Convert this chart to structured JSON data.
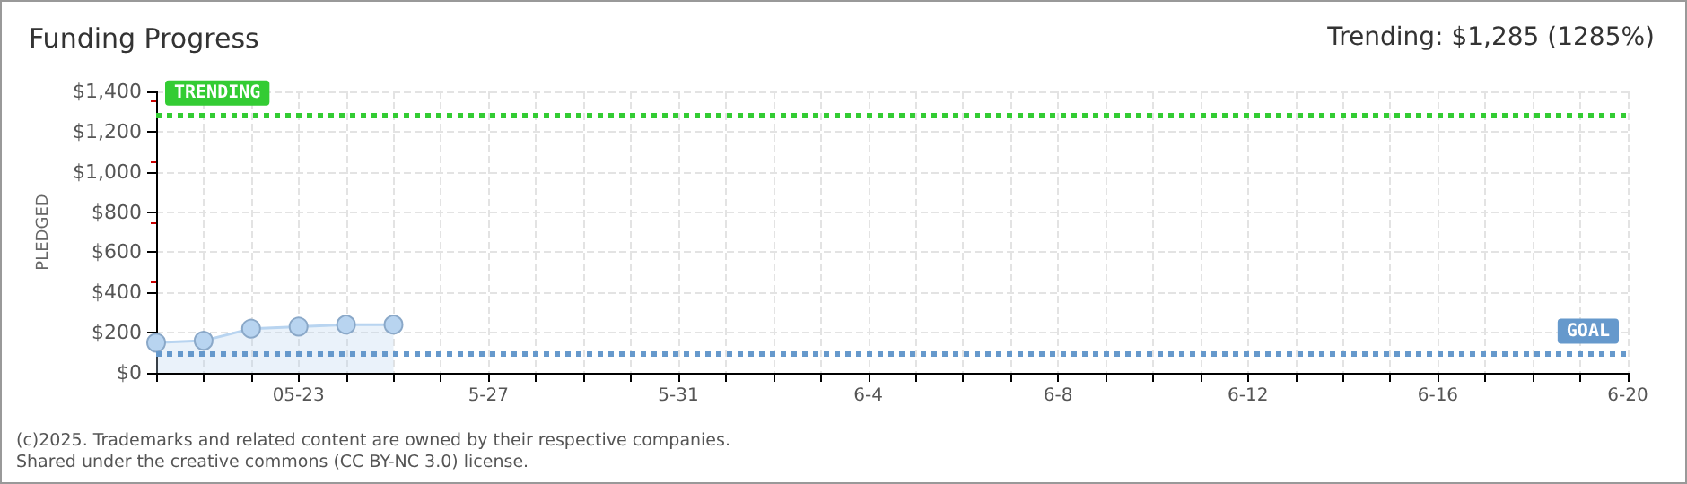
{
  "chart_data": {
    "type": "area",
    "title": "Funding Progress",
    "subtitle": "Trending: $1,285 (1285%)",
    "ylabel": "PLEDGED",
    "x": [
      "--05-20",
      "--05-21",
      "--05-22",
      "--05-23",
      "--05-24",
      "--05-25"
    ],
    "series": [
      {
        "color": "#b8d4f0",
        "values": [
          150,
          160,
          220,
          230,
          240,
          240
        ]
      }
    ],
    "xlim": [
      "--05-20",
      "--06-20"
    ],
    "xticks": [
      {
        "value": "--05-20",
        "label": null
      },
      {
        "value": "--05-21",
        "label": null
      },
      {
        "value": "--05-22",
        "label": null
      },
      {
        "value": "--05-23",
        "label": "05-23"
      },
      {
        "value": "--05-24",
        "label": null
      },
      {
        "value": "--05-25",
        "label": null
      },
      {
        "value": "--05-26",
        "label": null
      },
      {
        "value": "--05-27",
        "label": "5-27"
      },
      {
        "value": "--05-28",
        "label": null
      },
      {
        "value": "--05-29",
        "label": null
      },
      {
        "value": "--05-30",
        "label": null
      },
      {
        "value": "--05-31",
        "label": "5-31"
      },
      {
        "value": "--06-01",
        "label": null
      },
      {
        "value": "--06-02",
        "label": null
      },
      {
        "value": "--06-03",
        "label": null
      },
      {
        "value": "--06-04",
        "label": "6-4"
      },
      {
        "value": "--06-05",
        "label": null
      },
      {
        "value": "--06-06",
        "label": null
      },
      {
        "value": "--06-07",
        "label": null
      },
      {
        "value": "--06-08",
        "label": "6-8"
      },
      {
        "value": "--06-09",
        "label": null
      },
      {
        "value": "--06-10",
        "label": null
      },
      {
        "value": "--06-11",
        "label": null
      },
      {
        "value": "--06-12",
        "label": "6-12"
      },
      {
        "value": "--06-13",
        "label": null
      },
      {
        "value": "--06-14",
        "label": null
      },
      {
        "value": "--06-15",
        "label": null
      },
      {
        "value": "--06-16",
        "label": "6-16"
      },
      {
        "value": "--06-17",
        "label": null
      },
      {
        "value": "--06-18",
        "label": null
      },
      {
        "value": "--06-19",
        "label": null
      },
      {
        "value": "--06-20",
        "label": "6-20"
      }
    ],
    "ylim": [
      0,
      1400
    ],
    "yticks": [
      {
        "value": 0,
        "label": "$0"
      },
      {
        "value": 200,
        "label": "$200"
      },
      {
        "value": 400,
        "label": "$400"
      },
      {
        "value": 600,
        "label": "$600"
      },
      {
        "value": 800,
        "label": "$800"
      },
      {
        "value": 1000,
        "label": "$1,000"
      },
      {
        "value": 1200,
        "label": "$1,200"
      },
      {
        "value": 1400,
        "label": "$1,400"
      }
    ],
    "ref_lines": [
      {
        "axis": "y",
        "value": 1285,
        "label": "TRENDING",
        "color": "#33cc33",
        "line_style": "dotted"
      },
      {
        "axis": "y",
        "value": 100,
        "label": "GOAL",
        "color": "#6699cc",
        "line_style": "dotted"
      }
    ],
    "annotations": [
      "(c)2025. Trademarks and related content are owned by their respective companies.",
      "Shared under the creative commons (CC BY-NC 3.0) license."
    ],
    "grid": true,
    "marker": "circle",
    "line_style": "solid"
  }
}
